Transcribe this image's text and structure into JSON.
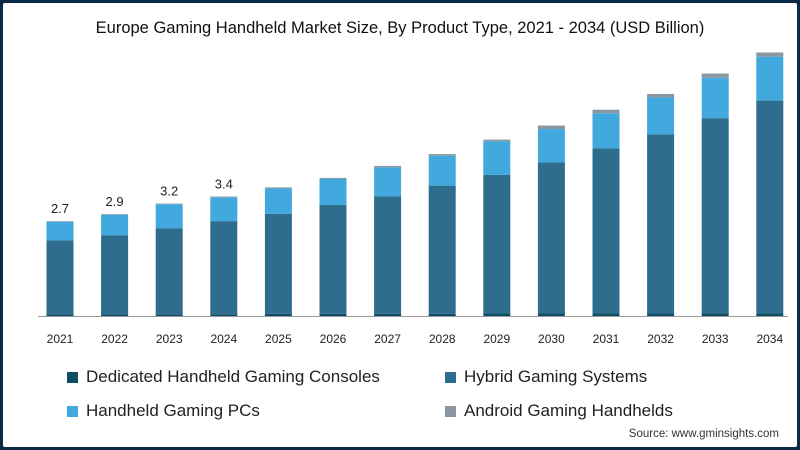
{
  "colors": {
    "dedicated": "#0e4d64",
    "hybrid": "#2e6d8e",
    "pcs": "#41a9de",
    "android": "#8a97a3"
  },
  "chart_data": {
    "type": "bar",
    "stacked": true,
    "title": "Europe Gaming Handheld Market Size, By Product Type, 2021 - 2034 (USD Billion)",
    "xlabel": "",
    "ylabel": "",
    "ylim": [
      0,
      7.2
    ],
    "categories": [
      "2021",
      "2022",
      "2023",
      "2024",
      "2025",
      "2026",
      "2027",
      "2028",
      "2029",
      "2030",
      "2031",
      "2032",
      "2033",
      "2034"
    ],
    "series": [
      {
        "name": "Dedicated Handheld Gaming Consoles",
        "key": "dedicated",
        "values": [
          0.05,
          0.05,
          0.05,
          0.05,
          0.06,
          0.06,
          0.06,
          0.06,
          0.07,
          0.07,
          0.07,
          0.07,
          0.08,
          0.08
        ]
      },
      {
        "name": "Hybrid Gaming Systems",
        "key": "hybrid",
        "values": [
          2.1,
          2.25,
          2.45,
          2.65,
          2.85,
          3.1,
          3.35,
          3.65,
          3.95,
          4.3,
          4.7,
          5.1,
          5.55,
          6.05
        ]
      },
      {
        "name": "Handheld Gaming PCs",
        "key": "pcs",
        "values": [
          0.53,
          0.58,
          0.68,
          0.68,
          0.72,
          0.74,
          0.82,
          0.85,
          0.95,
          0.95,
          1.0,
          1.05,
          1.15,
          1.25
        ]
      },
      {
        "name": "Android Gaming Handhelds",
        "key": "android",
        "values": [
          0.02,
          0.02,
          0.02,
          0.02,
          0.03,
          0.03,
          0.04,
          0.05,
          0.05,
          0.1,
          0.1,
          0.1,
          0.12,
          0.12
        ]
      }
    ],
    "data_labels": [
      {
        "category": "2021",
        "text": "2.7"
      },
      {
        "category": "2022",
        "text": "2.9"
      },
      {
        "category": "2023",
        "text": "3.2"
      },
      {
        "category": "2024",
        "text": "3.4"
      }
    ],
    "grid": false,
    "legend_position": "bottom"
  },
  "legend": [
    {
      "label": "Dedicated Handheld Gaming Consoles",
      "key": "dedicated"
    },
    {
      "label": "Hybrid Gaming Systems",
      "key": "hybrid"
    },
    {
      "label": "Handheld Gaming PCs",
      "key": "pcs"
    },
    {
      "label": "Android Gaming Handhelds",
      "key": "android"
    }
  ],
  "source": "Source: www.gminsights.com"
}
